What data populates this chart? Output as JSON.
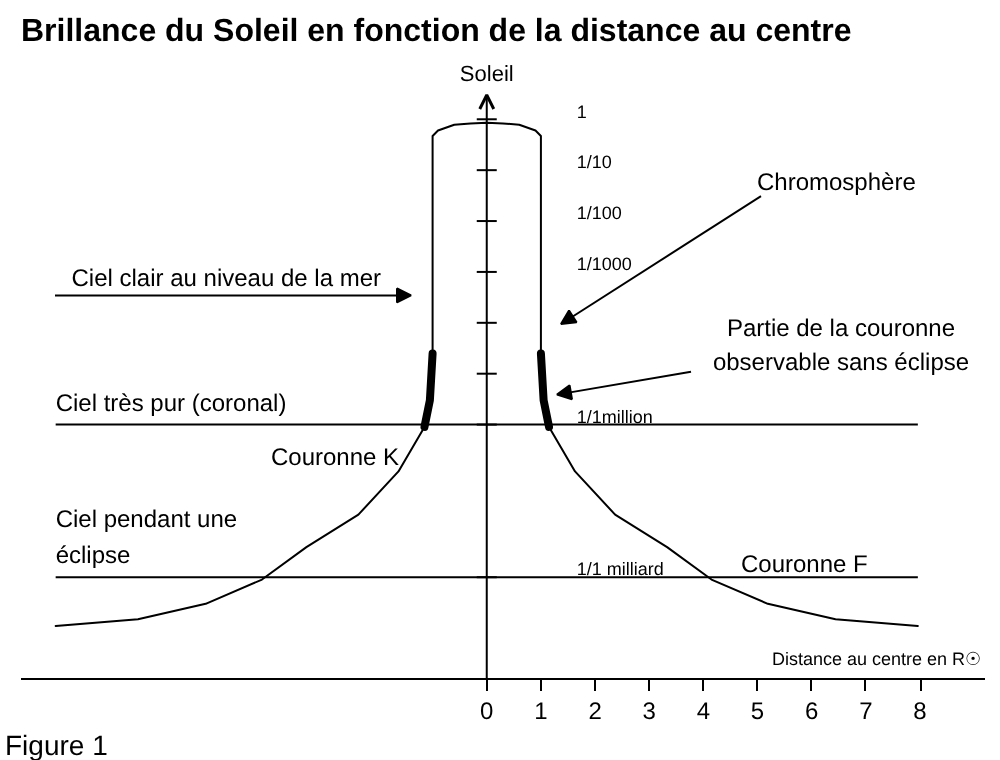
{
  "chart_data": {
    "type": "line",
    "title": "Brillance du Soleil en fonction de la distance au centre",
    "xlabel": "Distance au centre en R☉",
    "ylabel": "Soleil",
    "log": "y",
    "xlim": [
      -8.6,
      9.2
    ],
    "ylim": [
      1e-11,
      3
    ],
    "xticks": [
      0,
      1,
      2,
      3,
      4,
      5,
      6,
      7,
      8
    ],
    "yticks": [
      {
        "value": 1,
        "label": "1"
      },
      {
        "value": 0.1,
        "label": "1/10"
      },
      {
        "value": 0.01,
        "label": "1/100"
      },
      {
        "value": 0.001,
        "label": "1/1000"
      },
      {
        "value": 0.0001,
        "label": null
      },
      {
        "value": 1e-05,
        "label": null
      },
      {
        "value": 1e-06,
        "label": "1/1million"
      },
      {
        "value": 1e-09,
        "label": "1/1 milliard"
      }
    ],
    "marker": "none",
    "line_style": "solid",
    "series": [
      {
        "color": "#000000",
        "x": [
          -7.96,
          -6.44,
          -5.19,
          -4.15,
          -3.33,
          -2.37,
          -1.63,
          -1.15,
          -1.0,
          -1.0,
          -0.9,
          -0.6,
          -0.3,
          0,
          0.3,
          0.6,
          0.9,
          1.0,
          1.0,
          1.15,
          1.63,
          2.37,
          3.33,
          4.15,
          5.19,
          6.44,
          7.96
        ],
        "values": [
          1.1e-10,
          1.5e-10,
          3e-10,
          9e-10,
          3.9e-09,
          1.7e-08,
          1.2e-07,
          9e-07,
          8e-06,
          0.47,
          0.6,
          0.78,
          0.83,
          0.85,
          0.83,
          0.78,
          0.6,
          0.47,
          8e-06,
          9e-07,
          1.2e-07,
          1.7e-08,
          3.9e-09,
          9e-10,
          3e-10,
          1.5e-10,
          1.1e-10
        ]
      },
      {
        "color": "#000000",
        "x": [
          -1.0,
          -1.05,
          -1.15
        ],
        "values": [
          2.5e-05,
          3e-06,
          9e-07
        ]
      },
      {
        "color": "#000000",
        "x": [
          1.0,
          1.05,
          1.15
        ],
        "values": [
          2.5e-05,
          3e-06,
          9e-07
        ]
      }
    ],
    "ref_lines": [
      {
        "axis": "y",
        "value": 1e-06,
        "label": "Ciel très pur (coronal)",
        "color": "#000000"
      },
      {
        "axis": "y",
        "value": 1e-09,
        "label": "Ciel pendant une\néclipse",
        "color": "#000000"
      }
    ],
    "annotations": [
      "Ciel clair au niveau de la mer",
      "Chromosphère",
      "Partie de la couronne\nobservable sans éclipse",
      "Couronne K",
      "Couronne F",
      "Figure 1"
    ]
  }
}
